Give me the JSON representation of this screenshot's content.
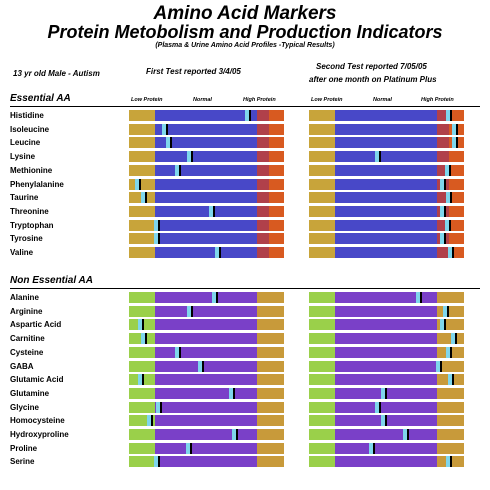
{
  "header": {
    "title": "Amino Acid Markers",
    "subtitle": "Protein Metobolism and Production Indicators",
    "note": "(Plasma & Urine Amino Acid Profiles -Typical Results)",
    "patient": "13 yr old Male - Autism",
    "test1": "First Test  reported 3/4/05",
    "test2_line1": "Second Test reported 7/05/05",
    "test2_line2": "after one month on Platinum Plus"
  },
  "sections": {
    "essential": "Essential AA",
    "nonessential": "Non Essential AA"
  },
  "scale": {
    "low": "Low Protein",
    "normal": "Normal",
    "high": "High Protein"
  },
  "colors": {
    "essential": {
      "low": "#c8a43a",
      "normal": "#4848c8",
      "high1": "#b0404a",
      "high2": "#d85a20"
    },
    "nonessential": {
      "low": "#9ad04a",
      "normal": "#7a40c8",
      "high": "#c89a3a"
    },
    "marker": "#7fd6ec"
  },
  "chart_data": {
    "type": "bar",
    "scale_note": "marker position along the reference bar, 0 = low end, 1 = high end",
    "essential": {
      "categories": [
        "Histidine",
        "Isoleucine",
        "Leucine",
        "Lysine",
        "Methionine",
        "Phenylalanine",
        "Taurine",
        "Threonine",
        "Tryptophan",
        "Tyrosine",
        "Valine"
      ],
      "first_test": [
        0.78,
        0.22,
        0.25,
        0.39,
        0.31,
        0.04,
        0.08,
        0.54,
        0.17,
        0.17,
        0.58
      ],
      "second_test": [
        0.92,
        0.96,
        0.96,
        0.44,
        0.91,
        0.88,
        0.92,
        0.88,
        0.91,
        0.88,
        0.93
      ]
    },
    "nonessential": {
      "categories": [
        "Alanine",
        "Arginine",
        "Aspartic Acid",
        "Carnitine",
        "Cysteine",
        "GABA",
        "Glutamic Acid",
        "Glutamine",
        "Glycine",
        "Homocysteine",
        "Hydroxyproline",
        "Proline",
        "Serine"
      ],
      "first_test": [
        0.56,
        0.39,
        0.06,
        0.08,
        0.31,
        0.46,
        0.06,
        0.67,
        0.18,
        0.12,
        0.69,
        0.38,
        0.17
      ],
      "second_test": [
        0.72,
        0.9,
        0.88,
        0.95,
        0.92,
        0.85,
        0.93,
        0.48,
        0.44,
        0.48,
        0.63,
        0.4,
        0.92
      ]
    }
  }
}
